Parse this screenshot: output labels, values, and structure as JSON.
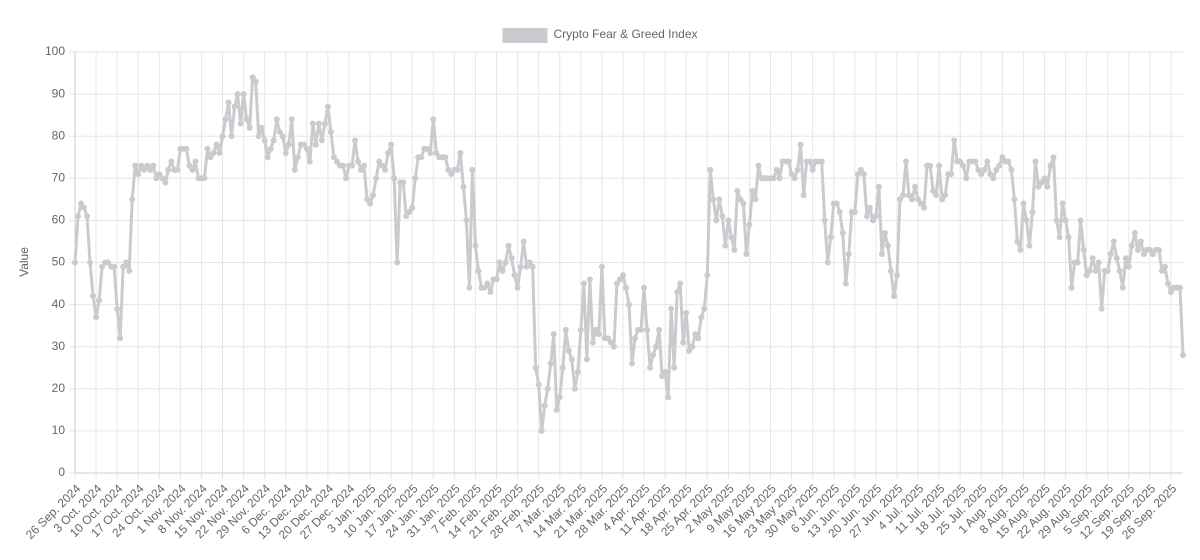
{
  "chart_data": {
    "type": "line",
    "y_label": "Value",
    "ylim": [
      0,
      100
    ],
    "yticks": [
      0,
      10,
      20,
      30,
      40,
      50,
      60,
      70,
      80,
      90,
      100
    ],
    "grid": true,
    "legend": "top",
    "categories": [
      "26 Sep. 2024",
      null,
      null,
      null,
      null,
      null,
      null,
      "3 Oct. 2024",
      null,
      null,
      null,
      null,
      null,
      null,
      "10 Oct. 2024",
      null,
      null,
      null,
      null,
      null,
      null,
      "17 Oct. 2024",
      null,
      null,
      null,
      null,
      null,
      null,
      "24 Oct. 2024",
      null,
      null,
      null,
      null,
      null,
      null,
      "1 Nov. 2024",
      null,
      null,
      null,
      null,
      null,
      null,
      "8 Nov. 2024",
      null,
      null,
      null,
      null,
      null,
      null,
      "15 Nov. 2024",
      null,
      null,
      null,
      null,
      null,
      null,
      "22 Nov. 2024",
      null,
      null,
      null,
      null,
      null,
      null,
      "29 Nov. 2024",
      null,
      null,
      null,
      null,
      null,
      null,
      "6 Dec. 2024",
      null,
      null,
      null,
      null,
      null,
      null,
      "13 Dec. 2024",
      null,
      null,
      null,
      null,
      null,
      null,
      "20 Dec. 2024",
      null,
      null,
      null,
      null,
      null,
      null,
      "27 Dec. 2024",
      null,
      null,
      null,
      null,
      null,
      null,
      "3 Jan. 2025",
      null,
      null,
      null,
      null,
      null,
      null,
      "10 Jan. 2025",
      null,
      null,
      null,
      null,
      null,
      null,
      "17 Jan. 2025",
      null,
      null,
      null,
      null,
      null,
      null,
      "24 Jan. 2025",
      null,
      null,
      null,
      null,
      null,
      null,
      "31 Jan. 2025",
      null,
      null,
      null,
      null,
      null,
      null,
      "7 Feb. 2025",
      null,
      null,
      null,
      null,
      null,
      null,
      "14 Feb. 2025",
      null,
      null,
      null,
      null,
      null,
      null,
      "21 Feb. 2025",
      null,
      null,
      null,
      null,
      null,
      null,
      "28 Feb. 2025",
      null,
      null,
      null,
      null,
      null,
      null,
      "7 Mar. 2025",
      null,
      null,
      null,
      null,
      null,
      null,
      "14 Mar. 2025",
      null,
      null,
      null,
      null,
      null,
      null,
      "21 Mar. 2025",
      null,
      null,
      null,
      null,
      null,
      null,
      "28 Mar. 2025",
      null,
      null,
      null,
      null,
      null,
      null,
      "4 Apr. 2025",
      null,
      null,
      null,
      null,
      null,
      null,
      "11 Apr. 2025",
      null,
      null,
      null,
      null,
      null,
      null,
      "18 Apr. 2025",
      null,
      null,
      null,
      null,
      null,
      null,
      "25 Apr. 2025",
      null,
      null,
      null,
      null,
      null,
      null,
      "2 May 2025",
      null,
      null,
      null,
      null,
      null,
      null,
      "9 May 2025",
      null,
      null,
      null,
      null,
      null,
      null,
      "16 May 2025",
      null,
      null,
      null,
      null,
      null,
      null,
      "23 May 2025",
      null,
      null,
      null,
      null,
      null,
      null,
      "30 May 2025",
      null,
      null,
      null,
      null,
      null,
      null,
      "6 Jun. 2025",
      null,
      null,
      null,
      null,
      null,
      null,
      "13 Jun. 2025",
      null,
      null,
      null,
      null,
      null,
      null,
      "20 Jun. 2025",
      null,
      null,
      null,
      null,
      null,
      null,
      "27 Jun. 2025",
      null,
      null,
      null,
      null,
      null,
      null,
      "4 Jul. 2025",
      null,
      null,
      null,
      null,
      null,
      null,
      "11 Jul. 2025",
      null,
      null,
      null,
      null,
      null,
      null,
      "18 Jul. 2025",
      null,
      null,
      null,
      null,
      null,
      null,
      "25 Jul. 2025",
      null,
      null,
      null,
      null,
      null,
      null,
      "1 Aug. 2025",
      null,
      null,
      null,
      null,
      null,
      null,
      "8 Aug. 2025",
      null,
      null,
      null,
      null,
      null,
      null,
      "15 Aug. 2025",
      null,
      null,
      null,
      null,
      null,
      null,
      "22 Aug. 2025",
      null,
      null,
      null,
      null,
      null,
      null,
      "29 Aug. 2025",
      null,
      null,
      null,
      null,
      null,
      null,
      "5 Sep. 2025",
      null,
      null,
      null,
      null,
      null,
      null,
      "12 Sep. 2025",
      null,
      null,
      null,
      null,
      null,
      null,
      "19 Sep. 2025",
      null,
      null,
      null,
      null,
      null,
      null,
      "26 Sep. 2025",
      null,
      null,
      null,
      null
    ],
    "series": [
      {
        "name": "Crypto Fear & Greed Index",
        "color": "#c9cbcf",
        "values": [
          50,
          61,
          64,
          63,
          61,
          50,
          42,
          37,
          41,
          49,
          50,
          50,
          49,
          49,
          39,
          32,
          49,
          50,
          48,
          65,
          73,
          71,
          73,
          72,
          73,
          72,
          73,
          70,
          71,
          70,
          69,
          72,
          74,
          72,
          72,
          77,
          77,
          77,
          73,
          72,
          74,
          70,
          70,
          70,
          77,
          75,
          76,
          78,
          76,
          80,
          84,
          88,
          80,
          87,
          90,
          83,
          90,
          84,
          82,
          94,
          93,
          80,
          82,
          79,
          75,
          77,
          79,
          84,
          81,
          80,
          76,
          78,
          84,
          72,
          75,
          78,
          78,
          77,
          74,
          83,
          78,
          83,
          79,
          83,
          87,
          81,
          75,
          74,
          73,
          73,
          70,
          73,
          73,
          79,
          74,
          72,
          73,
          65,
          64,
          66,
          70,
          74,
          73,
          72,
          76,
          78,
          70,
          50,
          69,
          69,
          61,
          62,
          63,
          70,
          75,
          75,
          77,
          77,
          76,
          84,
          76,
          75,
          75,
          75,
          72,
          71,
          72,
          72,
          76,
          68,
          60,
          44,
          72,
          54,
          48,
          44,
          44,
          45,
          43,
          46,
          46,
          50,
          48,
          50,
          54,
          51,
          47,
          44,
          49,
          55,
          49,
          50,
          49,
          25,
          21,
          10,
          16,
          20,
          26,
          33,
          15,
          18,
          25,
          34,
          29,
          27,
          20,
          24,
          34,
          45,
          27,
          46,
          31,
          34,
          33,
          49,
          32,
          32,
          31,
          30,
          45,
          46,
          47,
          44,
          40,
          26,
          32,
          34,
          34,
          44,
          34,
          25,
          28,
          30,
          34,
          23,
          24,
          18,
          39,
          25,
          43,
          45,
          31,
          38,
          29,
          30,
          33,
          32,
          37,
          39,
          47,
          72,
          65,
          60,
          65,
          61,
          54,
          60,
          56,
          53,
          67,
          65,
          64,
          52,
          59,
          67,
          65,
          73,
          70,
          70,
          70,
          70,
          70,
          72,
          70,
          74,
          74,
          74,
          71,
          70,
          72,
          78,
          66,
          74,
          74,
          72,
          74,
          74,
          74,
          60,
          50,
          56,
          64,
          64,
          62,
          57,
          45,
          52,
          62,
          62,
          71,
          72,
          71,
          61,
          63,
          60,
          61,
          68,
          52,
          57,
          54,
          48,
          42,
          47,
          65,
          66,
          74,
          66,
          65,
          68,
          65,
          64,
          63,
          73,
          73,
          67,
          66,
          73,
          65,
          66,
          71,
          71,
          79,
          74,
          74,
          73,
          70,
          74,
          74,
          74,
          72,
          71,
          72,
          74,
          71,
          70,
          72,
          73,
          75,
          74,
          74,
          72,
          65,
          55,
          53,
          64,
          60,
          54,
          62,
          74,
          68,
          69,
          70,
          68,
          73,
          75,
          60,
          56,
          64,
          60,
          56,
          44,
          50,
          50,
          60,
          53,
          47,
          48,
          51,
          48,
          50,
          39,
          48,
          48,
          52,
          55,
          51,
          48,
          44,
          51,
          49,
          54,
          57,
          53,
          55,
          52,
          53,
          53,
          52,
          53,
          53,
          48,
          49,
          45,
          43,
          44,
          44,
          44,
          28
        ]
      }
    ]
  }
}
